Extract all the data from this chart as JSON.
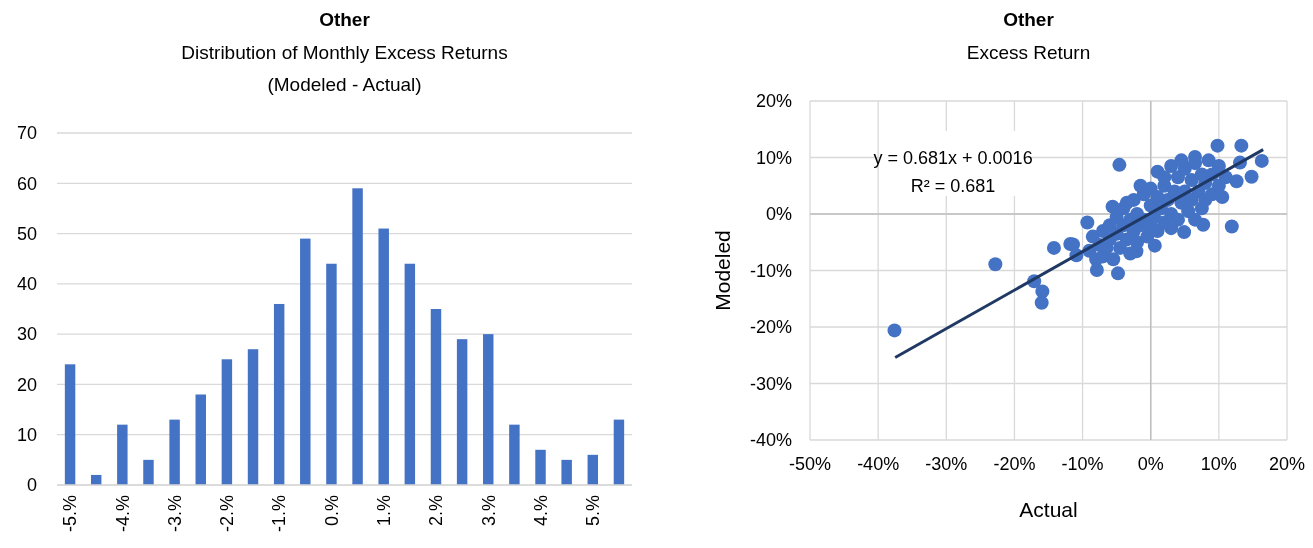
{
  "chart_data": [
    {
      "type": "bar",
      "title": "Other",
      "subtitle": "Distribution of Monthly Excess Returns\n(Modeled - Actual)",
      "categories": [
        "-5.%",
        null,
        "-4.%",
        null,
        "-3.%",
        null,
        "-2.%",
        null,
        "-1.%",
        null,
        "0.%",
        null,
        "1.%",
        null,
        "2.%",
        null,
        "3.%",
        null,
        "4.%",
        null,
        "5.%",
        null
      ],
      "values": [
        24,
        2,
        12,
        5,
        13,
        18,
        25,
        27,
        36,
        49,
        44,
        59,
        51,
        44,
        35,
        29,
        30,
        12,
        7,
        5,
        6,
        13
      ],
      "color": "#4472c4",
      "ylim": [
        0,
        70
      ],
      "yticks": [
        0,
        10,
        20,
        30,
        40,
        50,
        60,
        70
      ],
      "grid": "y"
    },
    {
      "type": "scatter",
      "title": "Other",
      "subtitle": "Excess Return",
      "xlabel": "Actual",
      "ylabel": "Modeled",
      "annotations": [
        "y = 0.681x + 0.0016",
        "R² = 0.681"
      ],
      "series": [
        {
          "type": "scatter",
          "color": "#4472c4",
          "marker": "circle",
          "x": [
            -37.6,
            -22.8,
            -17.1,
            -15.9,
            -16.0,
            -14.2,
            -11.8,
            -9.3,
            -4.6,
            -5.6,
            -4.8,
            -7.9,
            7.7,
            11.9,
            16.3,
            14.8,
            13.3,
            9.8,
            13.1,
            12.6,
            6.5,
            4.9,
            0.6,
            -2.1,
            -10.9,
            -11.4,
            -9,
            -8.5,
            -8,
            -7.5,
            -7,
            -7,
            -6.5,
            -6,
            -6,
            -5.5,
            -5,
            -5,
            -4.5,
            -4,
            -4,
            -3.5,
            -3,
            -3,
            -2.5,
            -2.5,
            -2,
            -2,
            -1.5,
            -1,
            -1,
            -0.5,
            0,
            0,
            0,
            0.5,
            1,
            1,
            1,
            1.5,
            2,
            2,
            2.5,
            3,
            3,
            3.5,
            4,
            4,
            4.5,
            5,
            5,
            5.5,
            6,
            6,
            6.5,
            7,
            7.5,
            7.5,
            8,
            8.5,
            9,
            9,
            10,
            10,
            10.5,
            11,
            -1.5,
            2,
            4.5,
            -3.5,
            3,
            6.5,
            8
          ],
          "values": [
            -20.6,
            -8.9,
            -11.9,
            -13.7,
            -15.7,
            -6.0,
            -5.3,
            -1.5,
            8.7,
            1.3,
            -10.5,
            -9.9,
            -1.9,
            -2.2,
            9.4,
            6.6,
            12.1,
            12.1,
            9.1,
            5.8,
            10.1,
            -3.2,
            -5.6,
            -6.6,
            -7.3,
            -5.4,
            -6.5,
            -4,
            -8,
            -5.5,
            -3,
            -7.5,
            -6,
            -2,
            -4.5,
            -8,
            -3.5,
            -0.5,
            -6,
            -2,
            1,
            -4.5,
            -1,
            -7,
            2.5,
            -3,
            0,
            -5,
            -2,
            3.5,
            -1,
            -4,
            1.5,
            -2,
            4.5,
            -0.5,
            3,
            7.5,
            -3,
            1,
            5,
            -1.5,
            2.5,
            8.5,
            0,
            4,
            6.5,
            -1,
            2,
            8,
            4,
            0.5,
            6,
            2.5,
            9,
            4,
            7,
            1,
            5.5,
            9.5,
            3.5,
            7,
            5,
            8.5,
            3,
            6.5,
            5,
            6.5,
            9.5,
            2,
            -2.5,
            -1,
            2.5
          ]
        },
        {
          "type": "line",
          "color": "#203864",
          "x": [
            -37.5,
            16.5
          ],
          "values": [
            -25.4,
            11.4
          ]
        }
      ],
      "xlim": [
        -50,
        20
      ],
      "xticks": [
        {
          "value": -50,
          "label": "-50%"
        },
        {
          "value": -40,
          "label": "-40%"
        },
        {
          "value": -30,
          "label": "-30%"
        },
        {
          "value": -20,
          "label": "-20%"
        },
        {
          "value": -10,
          "label": "-10%"
        },
        {
          "value": 0,
          "label": "0%"
        },
        {
          "value": 10,
          "label": "10%"
        },
        {
          "value": 20,
          "label": "20%"
        }
      ],
      "ylim": [
        -40,
        20
      ],
      "yticks": [
        {
          "value": -40,
          "label": "-40%"
        },
        {
          "value": -30,
          "label": "-30%"
        },
        {
          "value": -20,
          "label": "-20%"
        },
        {
          "value": -10,
          "label": "-10%"
        },
        {
          "value": 0,
          "label": "0%"
        },
        {
          "value": 10,
          "label": "10%"
        },
        {
          "value": 20,
          "label": "20%"
        }
      ],
      "grid": true
    }
  ]
}
